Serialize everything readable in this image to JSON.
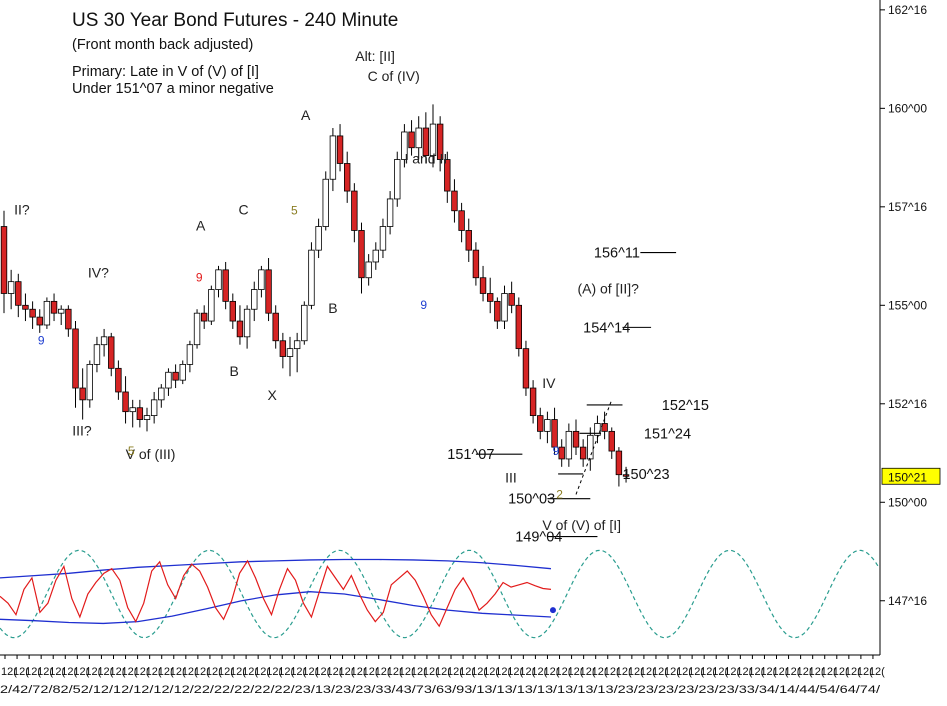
{
  "chart_data": {
    "type": "candlestick",
    "title": "US 30 Year Bond Futures - 240 Minute",
    "subtitle": "(Front month back adjusted)",
    "notes": [
      "Primary: Late in V of (V) of [I]",
      "Under 151^07 a minor negative"
    ],
    "y_axis": {
      "side": "right",
      "range": [
        146.25,
        162.75
      ],
      "ticks": [
        {
          "value": 147.5,
          "label": "147^16"
        },
        {
          "value": 150.0,
          "label": "150^00"
        },
        {
          "value": 152.5,
          "label": "152^16"
        },
        {
          "value": 155.0,
          "label": "155^00"
        },
        {
          "value": 157.5,
          "label": "157^16"
        },
        {
          "value": 160.0,
          "label": "160^00"
        },
        {
          "value": 162.5,
          "label": "162^16"
        }
      ],
      "last_price": {
        "value": 150.66,
        "label": "150^21",
        "color": "#ffff00"
      }
    },
    "x_ticks": {
      "top_row": [
        "12(",
        "12(",
        "12(",
        "12(",
        "12(",
        "12(",
        "12(",
        "12(",
        "12(",
        "12(",
        "12(",
        "12(",
        "12(",
        "12(",
        "12(",
        "12(",
        "12(",
        "12(",
        "12(",
        "12(",
        "12(",
        "12(",
        "12(",
        "12(",
        "12(",
        "12(",
        "12(",
        "12(",
        "12(",
        "12(",
        "12(",
        "12(",
        "12(",
        "12(",
        "12(",
        "12(",
        "12(",
        "12(",
        "12(",
        "12(",
        "12(",
        "12(",
        "12(",
        "12(",
        "12(",
        "12(",
        "12(",
        "12(",
        "12(",
        "12(",
        "12(",
        "12(",
        "12(",
        "12(",
        "12(",
        "12(",
        "12(",
        "12(",
        "12(",
        "12(",
        "12(",
        "12(",
        "12(",
        "12(",
        "12(",
        "12(",
        "12(",
        "12(",
        "12(",
        "12(",
        "12(",
        "12(",
        "12("
      ],
      "bottom_row": "2/42/72/82/52/12/12/12/12/12/22/22/22/22/22/23/13/23/23/33/43/73/63/93/13/13/13/13/13/13/13/23/23/23/23/23/23/33/34/14/44/54/64/74/"
    },
    "candles": [
      [
        157.0,
        157.4,
        154.8,
        155.3
      ],
      [
        155.3,
        155.9,
        154.9,
        155.6
      ],
      [
        155.6,
        155.8,
        154.7,
        155.0
      ],
      [
        155.0,
        155.3,
        154.6,
        154.9
      ],
      [
        154.9,
        155.1,
        154.4,
        154.7
      ],
      [
        154.7,
        154.9,
        154.3,
        154.5
      ],
      [
        154.5,
        155.2,
        154.4,
        155.1
      ],
      [
        155.1,
        155.3,
        154.6,
        154.8
      ],
      [
        154.8,
        155.0,
        154.5,
        154.9
      ],
      [
        154.9,
        155.0,
        154.2,
        154.4
      ],
      [
        154.4,
        154.6,
        152.4,
        152.9
      ],
      [
        152.9,
        153.4,
        152.1,
        152.6
      ],
      [
        152.6,
        153.6,
        152.4,
        153.5
      ],
      [
        153.5,
        154.2,
        153.3,
        154.0
      ],
      [
        154.0,
        154.4,
        153.7,
        154.2
      ],
      [
        154.2,
        154.3,
        153.2,
        153.4
      ],
      [
        153.4,
        153.6,
        152.6,
        152.8
      ],
      [
        152.8,
        153.2,
        152.0,
        152.3
      ],
      [
        152.3,
        152.6,
        151.9,
        152.4
      ],
      [
        152.4,
        152.6,
        151.9,
        152.1
      ],
      [
        152.1,
        152.4,
        151.8,
        152.2
      ],
      [
        152.2,
        152.8,
        152.0,
        152.6
      ],
      [
        152.6,
        153.0,
        152.4,
        152.9
      ],
      [
        152.9,
        153.4,
        152.7,
        153.3
      ],
      [
        153.3,
        153.5,
        152.9,
        153.1
      ],
      [
        153.1,
        153.6,
        153.0,
        153.5
      ],
      [
        153.5,
        154.1,
        153.3,
        154.0
      ],
      [
        154.0,
        154.9,
        153.9,
        154.8
      ],
      [
        154.8,
        155.0,
        154.4,
        154.6
      ],
      [
        154.6,
        155.5,
        154.5,
        155.4
      ],
      [
        155.4,
        156.0,
        155.2,
        155.9
      ],
      [
        155.9,
        156.1,
        154.9,
        155.1
      ],
      [
        155.1,
        155.3,
        154.4,
        154.6
      ],
      [
        154.6,
        155.0,
        154.0,
        154.2
      ],
      [
        154.2,
        155.0,
        153.9,
        154.9
      ],
      [
        154.9,
        155.6,
        154.6,
        155.4
      ],
      [
        155.4,
        156.0,
        155.2,
        155.9
      ],
      [
        155.9,
        156.2,
        154.6,
        154.8
      ],
      [
        154.8,
        155.0,
        153.9,
        154.1
      ],
      [
        154.1,
        154.3,
        153.4,
        153.7
      ],
      [
        153.7,
        154.2,
        153.2,
        153.9
      ],
      [
        153.9,
        154.3,
        153.3,
        154.1
      ],
      [
        154.1,
        155.1,
        154.0,
        155.0
      ],
      [
        155.0,
        156.6,
        154.9,
        156.4
      ],
      [
        156.4,
        157.2,
        156.2,
        157.0
      ],
      [
        157.0,
        158.4,
        156.9,
        158.2
      ],
      [
        158.2,
        159.5,
        157.9,
        159.3
      ],
      [
        159.3,
        159.6,
        158.4,
        158.6
      ],
      [
        158.6,
        158.9,
        157.6,
        157.9
      ],
      [
        157.9,
        158.1,
        156.6,
        156.9
      ],
      [
        156.9,
        157.1,
        155.3,
        155.7
      ],
      [
        155.7,
        156.3,
        155.5,
        156.1
      ],
      [
        156.1,
        156.6,
        155.9,
        156.4
      ],
      [
        156.4,
        157.2,
        156.2,
        157.0
      ],
      [
        157.0,
        157.9,
        156.8,
        157.7
      ],
      [
        157.7,
        158.9,
        157.5,
        158.7
      ],
      [
        158.7,
        159.6,
        158.5,
        159.4
      ],
      [
        159.4,
        159.7,
        158.8,
        159.0
      ],
      [
        159.0,
        159.8,
        158.7,
        159.5
      ],
      [
        159.5,
        159.9,
        158.6,
        158.8
      ],
      [
        158.8,
        160.1,
        158.5,
        159.6
      ],
      [
        159.6,
        159.8,
        158.4,
        158.7
      ],
      [
        158.7,
        158.9,
        157.6,
        157.9
      ],
      [
        157.9,
        158.2,
        157.1,
        157.4
      ],
      [
        157.4,
        157.6,
        156.6,
        156.9
      ],
      [
        156.9,
        157.2,
        156.1,
        156.4
      ],
      [
        156.4,
        156.6,
        155.5,
        155.7
      ],
      [
        155.7,
        156.0,
        155.1,
        155.3
      ],
      [
        155.3,
        155.7,
        154.8,
        155.1
      ],
      [
        155.1,
        155.2,
        154.4,
        154.6
      ],
      [
        154.6,
        155.5,
        154.4,
        155.3
      ],
      [
        155.3,
        155.6,
        154.8,
        155.0
      ],
      [
        155.0,
        155.2,
        153.7,
        153.9
      ],
      [
        153.9,
        154.1,
        152.7,
        152.9
      ],
      [
        152.9,
        153.1,
        152.0,
        152.2
      ],
      [
        152.2,
        152.4,
        151.6,
        151.8
      ],
      [
        151.8,
        152.3,
        151.5,
        152.1
      ],
      [
        152.1,
        152.4,
        151.2,
        151.4
      ],
      [
        151.4,
        151.6,
        150.9,
        151.1
      ],
      [
        151.1,
        152.0,
        150.9,
        151.8
      ],
      [
        151.8,
        152.1,
        151.2,
        151.4
      ],
      [
        151.4,
        151.6,
        150.9,
        151.1
      ],
      [
        151.1,
        151.9,
        150.8,
        151.7
      ],
      [
        151.7,
        152.2,
        151.5,
        152.0
      ],
      [
        152.0,
        152.3,
        151.6,
        151.8
      ],
      [
        151.8,
        151.9,
        151.1,
        151.3
      ],
      [
        151.3,
        151.4,
        150.4,
        150.7
      ],
      [
        150.7,
        150.9,
        150.5,
        150.66
      ]
    ],
    "candle_colors": {
      "up": "#ffffff",
      "down": "#d62424",
      "wick": "#000000"
    },
    "wave_labels": [
      {
        "text": "II?",
        "x": 2.5,
        "y": 157.3
      },
      {
        "text": "IV?",
        "x": 13.2,
        "y": 155.7
      },
      {
        "text": "III?",
        "x": 10.9,
        "y": 151.7
      },
      {
        "text": "V of (III)",
        "x": 20.5,
        "y": 151.1
      },
      {
        "text": "A",
        "x": 27.5,
        "y": 156.9
      },
      {
        "text": "B",
        "x": 32.2,
        "y": 153.2
      },
      {
        "text": "C",
        "x": 33.5,
        "y": 157.3
      },
      {
        "text": "X",
        "x": 37.5,
        "y": 152.6
      },
      {
        "text": "A",
        "x": 42.2,
        "y": 159.7
      },
      {
        "text": "B",
        "x": 46.0,
        "y": 154.8
      },
      {
        "text": "Alt: [II]",
        "x": 51.9,
        "y": 161.2
      },
      {
        "text": "C of (IV)",
        "x": 54.5,
        "y": 160.7
      },
      {
        "text": "I and II",
        "x": 59.0,
        "y": 158.6
      },
      {
        "text": "III",
        "x": 70.9,
        "y": 150.5
      },
      {
        "text": "IV",
        "x": 76.2,
        "y": 152.9
      },
      {
        "text": "(A) of [II]?",
        "x": 84.5,
        "y": 155.3
      },
      {
        "text": "V of (V) of [I]",
        "x": 80.8,
        "y": 149.3
      }
    ],
    "count_labels": [
      {
        "text": "9",
        "x": 5.2,
        "y": 154.0,
        "color": "#1f3fd0"
      },
      {
        "text": "5",
        "x": 17.8,
        "y": 151.2,
        "color": "#8a7d22"
      },
      {
        "text": "9",
        "x": 27.3,
        "y": 155.6,
        "color": "#e21b1b"
      },
      {
        "text": "5",
        "x": 40.6,
        "y": 157.3,
        "color": "#8a7d22"
      },
      {
        "text": "9",
        "x": 58.7,
        "y": 154.9,
        "color": "#1f3fd0"
      },
      {
        "text": "9",
        "x": 77.2,
        "y": 151.2,
        "color": "#1f3fd0"
      },
      {
        "text": "2",
        "x": 77.7,
        "y": 150.1,
        "color": "#8a7d22"
      }
    ],
    "levels": [
      {
        "label": "156^11",
        "value": 156.34,
        "label_x": 82.5,
        "line": [
          89.0,
          94.0
        ]
      },
      {
        "label": "154^14",
        "value": 154.44,
        "label_x": 81.0,
        "line": [
          86.5,
          90.5
        ]
      },
      {
        "label": "152^15",
        "value": 152.47,
        "label_x": 92.0,
        "line": [
          81.5,
          86.5
        ]
      },
      {
        "label": "151^24",
        "value": 151.75,
        "label_x": 89.5,
        "line": [
          80.5,
          83.5
        ]
      },
      {
        "label": "151^07",
        "value": 151.22,
        "label_x": 62.0,
        "line": [
          66.0,
          72.5
        ]
      },
      {
        "label": "150^23",
        "value": 150.72,
        "label_x": 86.5,
        "line": [
          77.5,
          81.0
        ]
      },
      {
        "label": "150^03",
        "value": 150.09,
        "label_x": 70.5,
        "line": [
          76.0,
          82.0
        ]
      },
      {
        "label": "149^04",
        "value": 149.13,
        "label_x": 71.5,
        "line": [
          76.0,
          83.0
        ]
      }
    ],
    "projection_line": {
      "from": [
        80.0,
        150.2
      ],
      "to": [
        85.0,
        152.6
      ]
    },
    "oscillator": {
      "x_end": 76.5,
      "cycle_period": 18.2,
      "cycle_color": "#2a9d8f",
      "band_color": "#1f2fd0",
      "line_color": "#e21b1b",
      "upper_band": [
        0.35,
        0.4,
        0.45,
        0.52,
        0.58,
        0.62,
        0.66,
        0.7,
        0.72,
        0.74,
        0.75,
        0.75,
        0.74,
        0.72,
        0.68,
        0.62,
        0.55
      ],
      "lower_band": [
        -0.55,
        -0.58,
        -0.62,
        -0.64,
        -0.6,
        -0.48,
        -0.32,
        -0.15,
        -0.02,
        0.05,
        0.0,
        -0.12,
        -0.25,
        -0.35,
        -0.42,
        -0.46,
        -0.5
      ],
      "osc_line": [
        -0.05,
        -0.2,
        -0.45,
        0.1,
        0.35,
        -0.4,
        -0.2,
        0.3,
        0.6,
        -0.1,
        -0.5,
        0.0,
        0.25,
        0.45,
        0.55,
        0.3,
        -0.3,
        -0.6,
        -0.2,
        0.5,
        0.7,
        0.2,
        -0.1,
        0.4,
        0.65,
        0.5,
        0.15,
        -0.3,
        -0.55,
        -0.15,
        0.45,
        0.72,
        0.35,
        -0.1,
        -0.45,
        0.1,
        0.55,
        0.3,
        -0.2,
        -0.5,
        0.05,
        0.6,
        0.35,
        0.1,
        0.4,
        0.0,
        -0.35,
        -0.6,
        -0.4,
        0.2,
        0.35,
        0.5,
        0.3,
        -0.05,
        -0.45,
        -0.7,
        -0.3,
        0.1,
        0.35,
        0.05,
        -0.35,
        -0.2,
        0.0,
        0.25,
        0.15,
        0.2,
        0.25,
        0.18,
        0.12,
        0.1
      ]
    }
  }
}
